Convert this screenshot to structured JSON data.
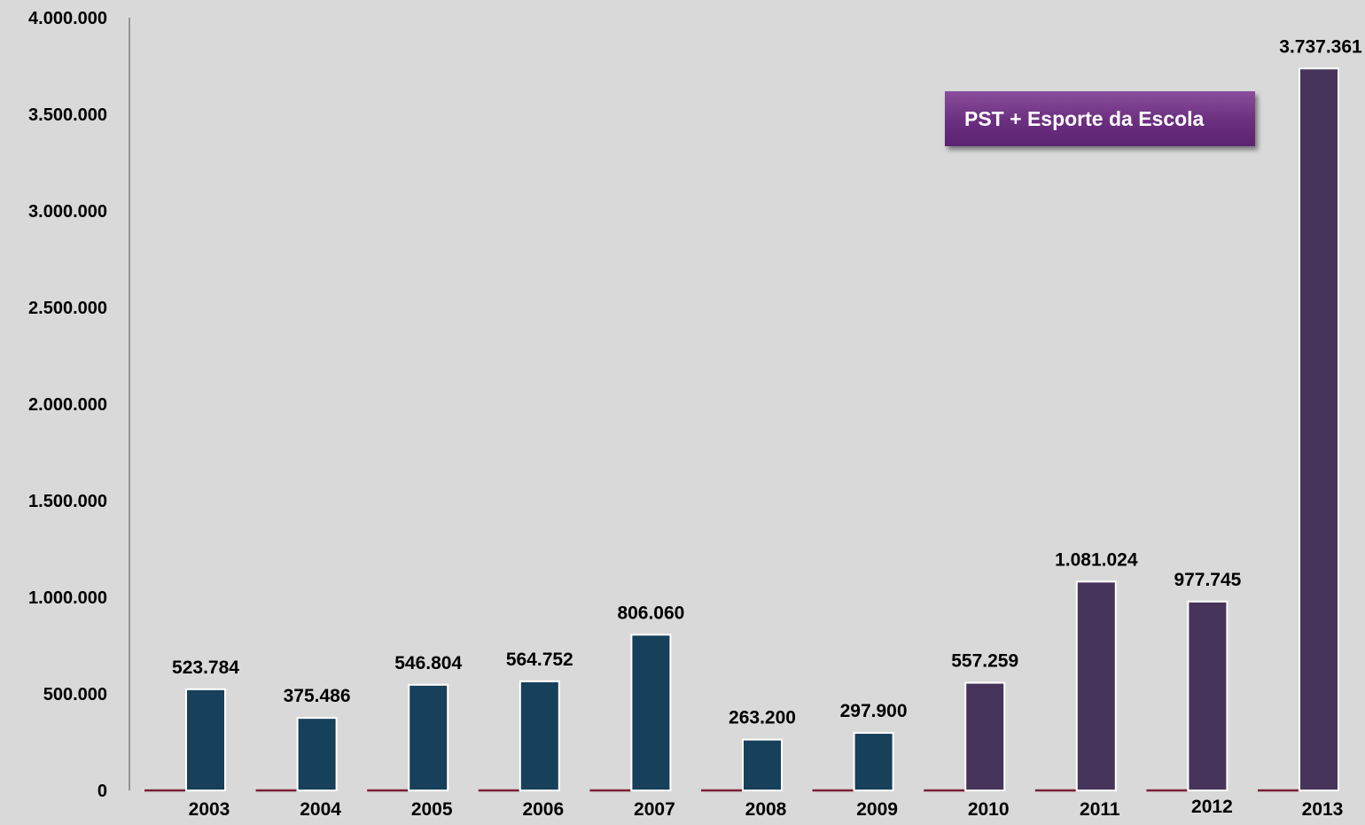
{
  "chart_data": {
    "type": "bar",
    "categories": [
      "2003",
      "2004",
      "2005",
      "2006",
      "2007",
      "2008",
      "2009",
      "2010",
      "2011",
      "2012",
      "2013"
    ],
    "values": [
      523784,
      375486,
      546804,
      564752,
      806060,
      263200,
      297900,
      557259,
      1081024,
      977745,
      3737361
    ],
    "value_labels": [
      "523.784",
      "375.486",
      "546.804",
      "564.752",
      "806.060",
      "263.200",
      "297.900",
      "557.259",
      "1.081.024",
      "977.745",
      "3.737.361"
    ],
    "ylim": [
      0,
      4000000
    ],
    "yticks": [
      0,
      500000,
      1000000,
      1500000,
      2000000,
      2500000,
      3000000,
      3500000,
      4000000
    ],
    "ytick_labels": [
      "0",
      "500.000",
      "1.000.000",
      "1.500.000",
      "2.000.000",
      "2.500.000",
      "3.000.000",
      "3.500.000",
      "4.000.000"
    ],
    "bar_colors": [
      "#17405a",
      "#17405a",
      "#17405a",
      "#17405a",
      "#17405a",
      "#17405a",
      "#17405a",
      "#46345a",
      "#46345a",
      "#46345a",
      "#46345a"
    ],
    "annotation": "PST + Esporte da Escola",
    "annotation_color": "#6b2f80",
    "grid": false
  }
}
